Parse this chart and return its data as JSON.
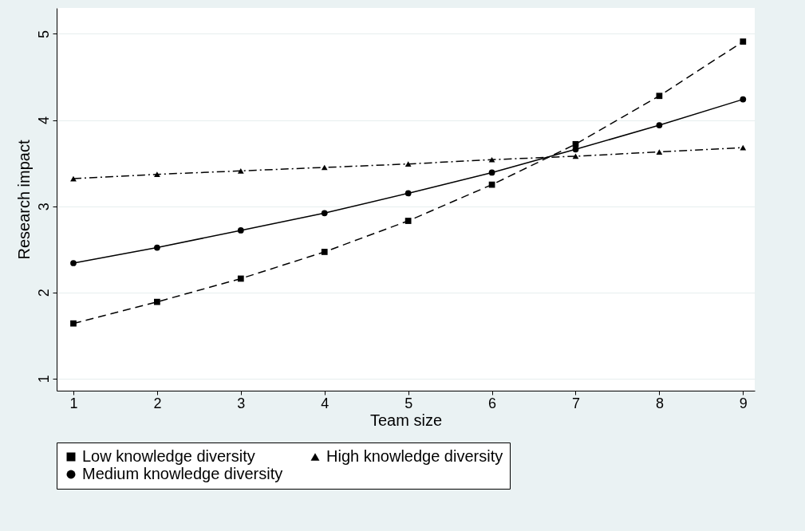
{
  "chart_data": {
    "type": "line",
    "xlabel": "Team size",
    "ylabel": "Research impact",
    "x": [
      1,
      2,
      3,
      4,
      5,
      6,
      7,
      8,
      9
    ],
    "xlim": [
      0.8,
      9.14
    ],
    "xticks": [
      1,
      2,
      3,
      4,
      5,
      6,
      7,
      8,
      9
    ],
    "ylim": [
      0.86,
      5.3
    ],
    "yticks": [
      1,
      2,
      3,
      4,
      5
    ],
    "grid": "y",
    "legend": "bottom",
    "series": [
      {
        "name": "Low knowledge diversity",
        "color": "#000000",
        "marker": "square",
        "line_style": "dashed",
        "values": [
          1.64,
          1.89,
          2.16,
          2.47,
          2.83,
          3.25,
          3.72,
          4.28,
          4.91
        ]
      },
      {
        "name": "Medium knowledge diversity",
        "color": "#000000",
        "marker": "circle",
        "line_style": "solid",
        "values": [
          2.34,
          2.52,
          2.72,
          2.92,
          3.15,
          3.39,
          3.66,
          3.94,
          4.24
        ]
      },
      {
        "name": "High knowledge diversity",
        "color": "#000000",
        "marker": "triangle",
        "line_style": "dashdot",
        "values": [
          3.32,
          3.37,
          3.41,
          3.45,
          3.49,
          3.54,
          3.58,
          3.63,
          3.68
        ]
      }
    ]
  }
}
